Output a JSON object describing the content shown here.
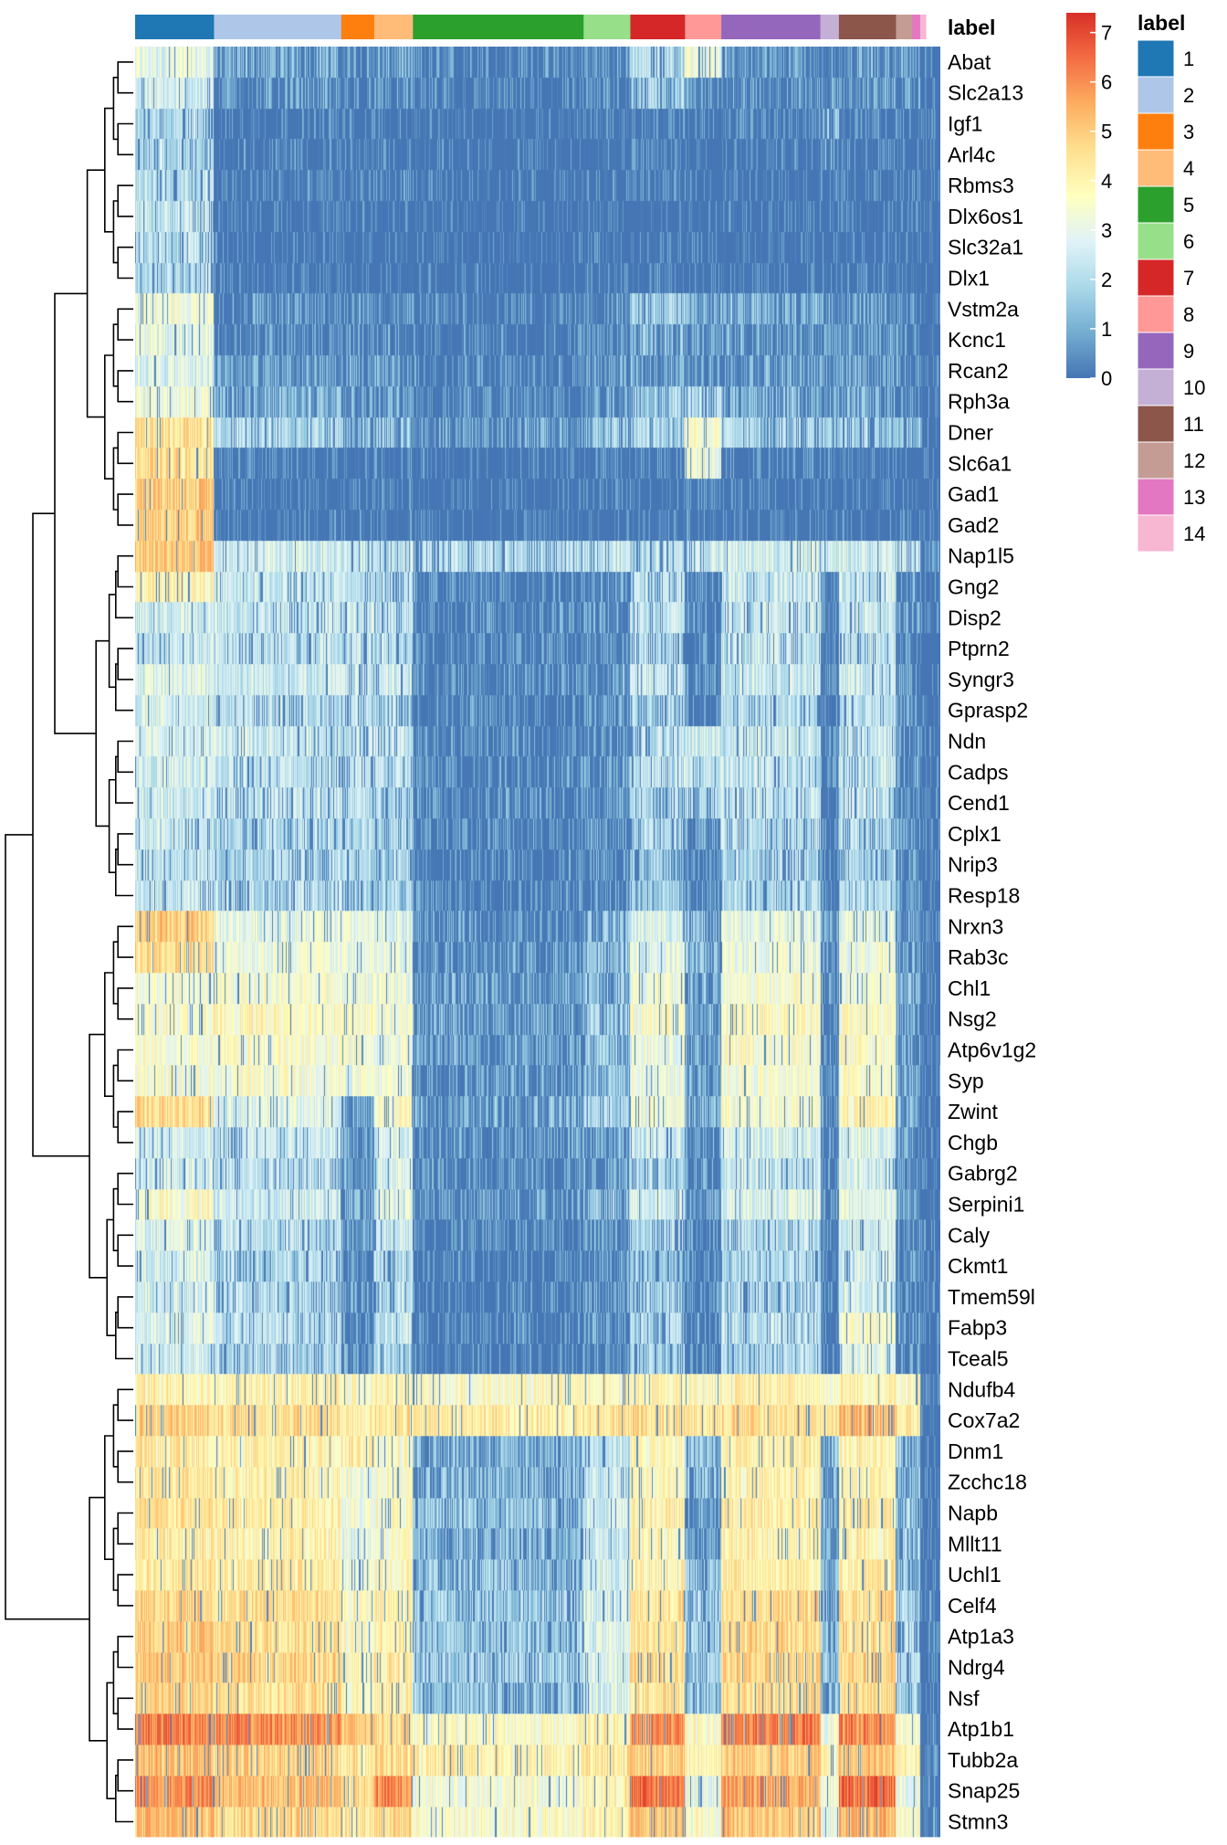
{
  "chart_data": {
    "type": "heatmap",
    "column_annotation_label": "label",
    "legend_title": "label",
    "colorbar_ticks": [
      0,
      1,
      2,
      3,
      4,
      5,
      6,
      7
    ],
    "colorbar_range": [
      0,
      7.4
    ],
    "colorbar_colors": [
      "#4575b4",
      "#74add1",
      "#abd9e9",
      "#e0f3f8",
      "#ffffbf",
      "#fee090",
      "#fdae61",
      "#f46d43",
      "#d73027"
    ],
    "genes": [
      "Abat",
      "Slc2a13",
      "Igf1",
      "Arl4c",
      "Rbms3",
      "Dlx6os1",
      "Slc32a1",
      "Dlx1",
      "Vstm2a",
      "Kcnc1",
      "Rcan2",
      "Rph3a",
      "Dner",
      "Slc6a1",
      "Gad1",
      "Gad2",
      "Nap1l5",
      "Gng2",
      "Disp2",
      "Ptprn2",
      "Syngr3",
      "Gprasp2",
      "Ndn",
      "Cadps",
      "Cend1",
      "Cplx1",
      "Nrip3",
      "Resp18",
      "Nrxn3",
      "Rab3c",
      "Chl1",
      "Nsg2",
      "Atp6v1g2",
      "Syp",
      "Zwint",
      "Chgb",
      "Gabrg2",
      "Serpini1",
      "Caly",
      "Ckmt1",
      "Tmem59l",
      "Fabp3",
      "Tceal5",
      "Ndufb4",
      "Cox7a2",
      "Dnm1",
      "Zcchc18",
      "Napb",
      "Mllt11",
      "Uchl1",
      "Celf4",
      "Atp1a3",
      "Ndrg4",
      "Nsf",
      "Atp1b1",
      "Tubb2a",
      "Snap25",
      "Stmn3"
    ],
    "clusters": [
      {
        "label": "1",
        "color": "#1f77b4",
        "proportion": 0.098
      },
      {
        "label": "2",
        "color": "#aec7e8",
        "proportion": 0.158
      },
      {
        "label": "3",
        "color": "#ff7f0e",
        "proportion": 0.041
      },
      {
        "label": "4",
        "color": "#ffbb78",
        "proportion": 0.048
      },
      {
        "label": "5",
        "color": "#2ca02c",
        "proportion": 0.212
      },
      {
        "label": "6",
        "color": "#98df8a",
        "proportion": 0.058
      },
      {
        "label": "7",
        "color": "#d62728",
        "proportion": 0.068
      },
      {
        "label": "8",
        "color": "#ff9896",
        "proportion": 0.045
      },
      {
        "label": "9",
        "color": "#9467bd",
        "proportion": 0.123
      },
      {
        "label": "10",
        "color": "#c5b0d5",
        "proportion": 0.023
      },
      {
        "label": "11",
        "color": "#8c564b",
        "proportion": 0.071
      },
      {
        "label": "12",
        "color": "#c49c94",
        "proportion": 0.02
      },
      {
        "label": "13",
        "color": "#e377c2",
        "proportion": 0.01
      },
      {
        "label": "14",
        "color": "#f7b6d2",
        "proportion": 0.007
      }
    ],
    "mean_expression": {
      "_order": "rows follow genes; columns follow clusters 1..14",
      "Abat": [
        3.0,
        1.2,
        0.8,
        1.0,
        0.6,
        0.8,
        2.2,
        3.4,
        0.9,
        0.8,
        1.0,
        1.0,
        1.0,
        0.3
      ],
      "Slc2a13": [
        2.5,
        0.8,
        0.6,
        0.7,
        0.4,
        0.6,
        1.8,
        0.8,
        0.8,
        0.7,
        0.9,
        0.8,
        0.7,
        0.2
      ],
      "Igf1": [
        2.0,
        0.3,
        0.3,
        0.3,
        0.2,
        0.3,
        0.4,
        0.3,
        0.5,
        1.5,
        0.4,
        0.3,
        0.3,
        0.2
      ],
      "Arl4c": [
        2.0,
        0.4,
        0.3,
        0.3,
        0.2,
        0.3,
        0.4,
        0.3,
        0.3,
        1.0,
        0.4,
        0.3,
        0.3,
        0.2
      ],
      "Rbms3": [
        2.2,
        0.4,
        0.4,
        0.4,
        0.2,
        0.3,
        0.4,
        0.3,
        0.3,
        0.3,
        0.3,
        0.3,
        0.3,
        0.2
      ],
      "Dlx6os1": [
        2.3,
        0.2,
        0.2,
        0.2,
        0.1,
        0.2,
        0.2,
        0.2,
        0.2,
        0.2,
        0.2,
        0.2,
        0.2,
        0.1
      ],
      "Slc32a1": [
        2.2,
        0.2,
        0.2,
        0.2,
        0.1,
        0.2,
        0.2,
        0.2,
        0.2,
        0.2,
        0.2,
        0.2,
        0.2,
        0.1
      ],
      "Dlx1": [
        2.0,
        0.2,
        0.2,
        0.2,
        0.1,
        0.2,
        0.2,
        0.2,
        0.2,
        0.2,
        0.2,
        0.2,
        0.2,
        0.1
      ],
      "Vstm2a": [
        3.3,
        0.8,
        0.7,
        0.8,
        0.5,
        0.8,
        1.8,
        1.5,
        1.2,
        1.0,
        1.0,
        0.8,
        0.7,
        0.3
      ],
      "Kcnc1": [
        3.0,
        0.7,
        0.7,
        0.7,
        0.4,
        0.7,
        1.5,
        1.0,
        1.0,
        0.8,
        1.0,
        0.7,
        0.6,
        0.3
      ],
      "Rcan2": [
        2.8,
        1.0,
        0.9,
        0.9,
        0.5,
        0.9,
        1.2,
        1.0,
        1.0,
        0.9,
        1.0,
        0.8,
        0.7,
        0.3
      ],
      "Rph3a": [
        3.2,
        1.3,
        1.0,
        1.0,
        0.6,
        1.0,
        1.8,
        2.0,
        1.2,
        1.0,
        1.2,
        1.0,
        0.8,
        0.3
      ],
      "Dner": [
        4.4,
        2.0,
        1.5,
        1.6,
        1.0,
        1.6,
        2.0,
        3.6,
        2.0,
        1.6,
        1.8,
        1.5,
        1.4,
        0.4
      ],
      "Slc6a1": [
        4.5,
        0.4,
        0.3,
        0.3,
        0.2,
        0.3,
        0.5,
        3.2,
        0.4,
        0.3,
        0.4,
        0.3,
        0.3,
        0.2
      ],
      "Gad1": [
        5.0,
        0.3,
        0.3,
        0.3,
        0.2,
        0.3,
        0.3,
        0.4,
        0.3,
        0.3,
        0.3,
        0.3,
        0.3,
        0.2
      ],
      "Gad2": [
        4.9,
        0.3,
        0.3,
        0.3,
        0.2,
        0.3,
        0.3,
        0.4,
        0.3,
        0.3,
        0.3,
        0.3,
        0.3,
        0.2
      ],
      "Nap1l5": [
        5.0,
        2.5,
        2.4,
        2.4,
        2.0,
        2.4,
        2.2,
        2.4,
        2.6,
        2.4,
        2.5,
        2.4,
        2.3,
        0.5
      ],
      "Gng2": [
        4.0,
        2.4,
        2.3,
        2.2,
        0.6,
        0.8,
        2.2,
        0.6,
        2.4,
        0.5,
        2.4,
        0.8,
        0.8,
        0.3
      ],
      "Disp2": [
        2.5,
        2.4,
        2.4,
        2.2,
        0.6,
        0.8,
        2.3,
        0.6,
        2.4,
        0.6,
        2.4,
        0.8,
        0.8,
        0.3
      ],
      "Ptprn2": [
        2.4,
        2.3,
        2.2,
        2.2,
        0.6,
        0.8,
        2.1,
        0.6,
        2.3,
        0.6,
        2.3,
        0.8,
        0.8,
        0.3
      ],
      "Syngr3": [
        2.8,
        2.5,
        2.4,
        2.4,
        0.7,
        1.0,
        2.4,
        0.7,
        2.5,
        0.7,
        2.5,
        0.9,
        0.9,
        0.3
      ],
      "Gprasp2": [
        2.6,
        2.2,
        2.0,
        2.0,
        0.6,
        0.9,
        2.0,
        0.6,
        2.2,
        0.6,
        2.2,
        0.8,
        0.8,
        0.3
      ],
      "Ndn": [
        2.6,
        2.4,
        2.3,
        2.2,
        0.6,
        0.9,
        2.2,
        2.5,
        2.4,
        0.6,
        2.4,
        0.8,
        0.8,
        0.3
      ],
      "Cadps": [
        2.6,
        2.3,
        2.2,
        2.2,
        0.7,
        1.0,
        2.2,
        2.4,
        2.3,
        0.6,
        2.3,
        0.9,
        0.9,
        0.3
      ],
      "Cend1": [
        2.5,
        2.3,
        2.2,
        2.0,
        0.6,
        0.9,
        2.1,
        2.0,
        2.3,
        0.6,
        2.3,
        0.8,
        0.8,
        0.3
      ],
      "Cplx1": [
        2.4,
        2.0,
        2.2,
        2.0,
        0.6,
        0.8,
        2.0,
        0.8,
        2.2,
        0.6,
        2.2,
        0.8,
        0.8,
        0.3
      ],
      "Nrip3": [
        2.3,
        2.0,
        2.0,
        1.9,
        0.5,
        0.7,
        1.6,
        0.6,
        2.0,
        0.5,
        2.0,
        0.7,
        0.7,
        0.3
      ],
      "Resp18": [
        2.4,
        2.1,
        2.0,
        1.9,
        0.6,
        0.8,
        1.8,
        0.7,
        2.1,
        0.6,
        2.1,
        0.8,
        0.8,
        0.3
      ],
      "Nrxn3": [
        4.8,
        3.0,
        3.0,
        2.8,
        0.8,
        1.4,
        2.8,
        1.5,
        3.0,
        0.8,
        3.0,
        1.0,
        1.0,
        0.3
      ],
      "Rab3c": [
        4.6,
        3.2,
        3.0,
        3.0,
        0.9,
        1.5,
        3.0,
        1.4,
        3.2,
        0.8,
        3.2,
        1.0,
        1.0,
        0.3
      ],
      "Chl1": [
        3.4,
        3.4,
        3.2,
        3.2,
        1.0,
        1.6,
        3.2,
        1.2,
        3.4,
        0.8,
        3.4,
        1.2,
        1.2,
        0.3
      ],
      "Nsg2": [
        3.6,
        3.8,
        3.6,
        3.4,
        1.1,
        1.8,
        3.4,
        1.2,
        3.8,
        0.8,
        3.6,
        1.2,
        1.2,
        0.3
      ],
      "Atp6v1g2": [
        3.5,
        3.5,
        3.4,
        3.2,
        1.0,
        1.6,
        3.2,
        1.2,
        3.6,
        0.8,
        3.6,
        1.2,
        1.2,
        0.3
      ],
      "Syp": [
        3.4,
        3.4,
        3.2,
        3.2,
        1.0,
        1.6,
        3.2,
        1.2,
        3.4,
        0.8,
        3.5,
        1.2,
        1.2,
        0.3
      ],
      "Zwint": [
        4.6,
        2.8,
        1.0,
        3.6,
        1.2,
        2.0,
        3.2,
        1.4,
        3.4,
        0.8,
        4.0,
        1.2,
        1.2,
        0.3
      ],
      "Chgb": [
        2.6,
        2.4,
        1.2,
        2.8,
        0.8,
        1.2,
        2.4,
        1.0,
        2.6,
        0.6,
        2.8,
        1.0,
        1.0,
        0.3
      ],
      "Gabrg2": [
        2.6,
        2.2,
        1.0,
        2.6,
        0.7,
        1.0,
        2.0,
        0.8,
        2.4,
        0.6,
        2.6,
        0.8,
        0.8,
        0.3
      ],
      "Serpini1": [
        3.6,
        2.6,
        1.2,
        2.8,
        0.9,
        1.4,
        2.6,
        1.0,
        2.8,
        0.6,
        3.0,
        1.0,
        1.0,
        0.3
      ],
      "Caly": [
        2.8,
        2.2,
        0.9,
        2.4,
        0.6,
        0.9,
        2.0,
        0.7,
        2.2,
        0.5,
        2.6,
        0.8,
        0.8,
        0.3
      ],
      "Ckmt1": [
        2.6,
        2.0,
        0.8,
        2.2,
        0.5,
        0.8,
        1.8,
        0.6,
        2.0,
        0.5,
        2.4,
        0.7,
        0.7,
        0.3
      ],
      "Tmem59l": [
        2.6,
        2.0,
        0.8,
        2.2,
        0.5,
        0.8,
        1.8,
        0.6,
        2.0,
        0.5,
        2.6,
        0.7,
        0.7,
        0.3
      ],
      "Fabp3": [
        2.8,
        2.2,
        0.8,
        2.4,
        0.5,
        0.8,
        2.0,
        0.6,
        2.2,
        0.5,
        3.6,
        0.7,
        0.7,
        0.3
      ],
      "Tceal5": [
        2.5,
        2.0,
        0.7,
        2.0,
        0.4,
        0.7,
        1.8,
        0.5,
        2.0,
        0.4,
        3.0,
        0.6,
        0.6,
        0.3
      ],
      "Ndufb4": [
        4.0,
        4.0,
        3.6,
        4.0,
        3.6,
        3.8,
        4.0,
        3.8,
        4.0,
        3.6,
        4.0,
        3.8,
        3.8,
        0.5
      ],
      "Cox7a2": [
        4.8,
        4.6,
        4.0,
        4.4,
        4.2,
        4.4,
        4.6,
        4.4,
        4.6,
        4.2,
        5.2,
        4.4,
        4.2,
        0.6
      ],
      "Dnm1": [
        4.2,
        4.0,
        4.2,
        3.6,
        1.4,
        2.4,
        3.8,
        1.6,
        4.0,
        1.2,
        4.0,
        1.6,
        1.6,
        0.4
      ],
      "Zcchc18": [
        4.2,
        4.0,
        3.2,
        3.6,
        1.4,
        2.4,
        3.8,
        1.6,
        4.0,
        1.2,
        4.0,
        1.6,
        1.6,
        0.4
      ],
      "Napb": [
        4.4,
        4.2,
        3.2,
        3.6,
        1.6,
        2.6,
        4.0,
        1.0,
        4.2,
        1.4,
        4.2,
        1.8,
        1.8,
        0.4
      ],
      "Mllt11": [
        4.2,
        4.0,
        3.0,
        3.6,
        1.4,
        2.4,
        3.8,
        1.0,
        4.0,
        1.2,
        4.0,
        1.6,
        1.6,
        0.4
      ],
      "Uchl1": [
        4.4,
        4.2,
        3.2,
        3.8,
        1.6,
        2.6,
        4.0,
        1.6,
        4.2,
        1.4,
        4.2,
        1.8,
        1.8,
        0.4
      ],
      "Celf4": [
        4.8,
        4.6,
        3.6,
        4.0,
        1.8,
        2.8,
        4.4,
        1.8,
        4.6,
        1.6,
        4.6,
        2.0,
        2.0,
        0.4
      ],
      "Atp1a3": [
        5.0,
        4.6,
        3.6,
        4.2,
        1.8,
        2.8,
        4.4,
        1.8,
        4.6,
        1.6,
        4.6,
        2.0,
        2.0,
        0.4
      ],
      "Ndrg4": [
        5.0,
        4.8,
        3.8,
        4.2,
        1.8,
        2.8,
        4.6,
        1.8,
        4.8,
        1.6,
        4.8,
        2.0,
        2.0,
        0.4
      ],
      "Nsf": [
        4.8,
        4.6,
        3.6,
        4.0,
        1.6,
        2.6,
        4.4,
        1.6,
        4.6,
        1.4,
        4.6,
        1.8,
        1.8,
        0.4
      ],
      "Atp1b1": [
        6.2,
        6.0,
        5.0,
        4.8,
        3.6,
        4.0,
        6.0,
        3.6,
        6.2,
        3.4,
        6.0,
        3.6,
        3.6,
        0.6
      ],
      "Tubb2a": [
        5.2,
        4.8,
        4.4,
        4.6,
        4.0,
        4.4,
        4.8,
        4.0,
        5.0,
        3.8,
        5.0,
        4.0,
        4.0,
        0.6
      ],
      "Snap25": [
        6.0,
        5.2,
        4.6,
        6.0,
        3.4,
        4.0,
        6.4,
        3.0,
        5.6,
        3.0,
        6.4,
        3.2,
        3.2,
        0.6
      ],
      "Stmn3": [
        5.2,
        4.8,
        4.4,
        4.8,
        3.6,
        4.0,
        5.0,
        3.4,
        5.0,
        3.2,
        5.2,
        3.4,
        3.4,
        0.6
      ]
    }
  }
}
